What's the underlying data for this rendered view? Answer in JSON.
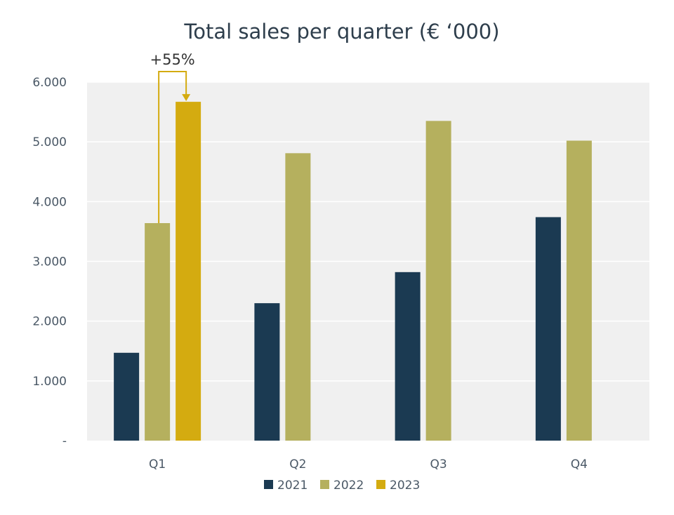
{
  "chart_data": {
    "type": "bar",
    "title": "Total sales per quarter (€ ‘000)",
    "xlabel": "",
    "ylabel": "",
    "categories": [
      "Q1",
      "Q2",
      "Q3",
      "Q4"
    ],
    "ylim": [
      0,
      6000
    ],
    "y_ticks": [
      0,
      1000,
      2000,
      3000,
      4000,
      5000,
      6000
    ],
    "y_tick_labels": [
      "-",
      "1.000",
      "2.000",
      "3.000",
      "4.000",
      "5.000",
      "6.000"
    ],
    "grid": true,
    "legend_position": "bottom",
    "series": [
      {
        "name": "2021",
        "color": "#1b3a52",
        "values": [
          1470,
          2300,
          2820,
          3740
        ]
      },
      {
        "name": "2022",
        "color": "#b5b05e",
        "values": [
          3640,
          4810,
          5350,
          5020
        ]
      },
      {
        "name": "2023",
        "color": "#d4ab10",
        "values": [
          5670,
          null,
          null,
          null
        ]
      }
    ],
    "annotation": {
      "text": "+55%",
      "from": {
        "category": "Q1",
        "series": "2022"
      },
      "to": {
        "category": "Q1",
        "series": "2023"
      },
      "color": "#d4ab10"
    },
    "colors": {
      "plot_background": "#f0f0f0",
      "gridline": "#ffffff",
      "axis_text": "#4a5866",
      "title_text": "#2e3e4c"
    }
  }
}
